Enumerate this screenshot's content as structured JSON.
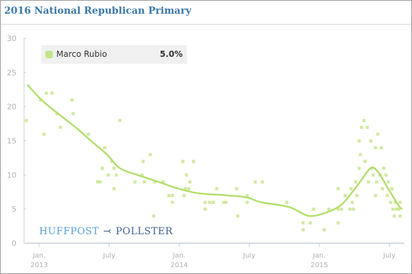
{
  "header": {
    "title": "2016 National Republican Primary"
  },
  "legend": {
    "name": "Marco Rubio",
    "value": "5.0%",
    "color": "#c4e38a"
  },
  "logo": {
    "left": "HUFFPOST",
    "right": "POLLSTER"
  },
  "chart_data": {
    "type": "scatter",
    "title": "2016 National Republican Primary",
    "x_unit": "months since Jan 2013",
    "ylim": [
      0,
      30
    ],
    "xlim": [
      -1.4,
      31.4
    ],
    "y_ticks": [
      "0",
      "5",
      "10",
      "15",
      "20",
      "25",
      "30"
    ],
    "x_ticks": [
      {
        "m": 0,
        "l1": "Jan.",
        "l2": "2013"
      },
      {
        "m": 6,
        "l1": "July",
        "l2": ""
      },
      {
        "m": 12,
        "l1": "Jan.",
        "l2": "2014"
      },
      {
        "m": 18,
        "l1": "July",
        "l2": ""
      },
      {
        "m": 24,
        "l1": "Jan.",
        "l2": "2015"
      },
      {
        "m": 30,
        "l1": "July",
        "l2": ""
      }
    ],
    "series": [
      {
        "name": "Marco Rubio",
        "color": "#c4e38a",
        "points": [
          [
            -1.1,
            18
          ],
          [
            0.1,
            21
          ],
          [
            0.4,
            16
          ],
          [
            0.6,
            22
          ],
          [
            1.1,
            22
          ],
          [
            1.5,
            19
          ],
          [
            1.8,
            17
          ],
          [
            2.8,
            21
          ],
          [
            2.9,
            19
          ],
          [
            4.2,
            16
          ],
          [
            5.0,
            9
          ],
          [
            5.2,
            9
          ],
          [
            5.4,
            11
          ],
          [
            5.6,
            14
          ],
          [
            5.9,
            10
          ],
          [
            6.2,
            12
          ],
          [
            6.4,
            11
          ],
          [
            6.4,
            8
          ],
          [
            6.6,
            10
          ],
          [
            6.9,
            18
          ],
          [
            8.2,
            9
          ],
          [
            8.8,
            10
          ],
          [
            8.9,
            12
          ],
          [
            9.0,
            9
          ],
          [
            9.5,
            13
          ],
          [
            9.8,
            4
          ],
          [
            9.9,
            9
          ],
          [
            10.6,
            9
          ],
          [
            11.1,
            7
          ],
          [
            11.4,
            7
          ],
          [
            11.4,
            6
          ],
          [
            12.3,
            12
          ],
          [
            12.4,
            7
          ],
          [
            12.6,
            10
          ],
          [
            12.5,
            8
          ],
          [
            12.8,
            8
          ],
          [
            12.9,
            9
          ],
          [
            13.2,
            12
          ],
          [
            14.2,
            5
          ],
          [
            14.2,
            6
          ],
          [
            14.6,
            6
          ],
          [
            14.9,
            6
          ],
          [
            15.2,
            8
          ],
          [
            15.8,
            6
          ],
          [
            16.0,
            6
          ],
          [
            16.9,
            8
          ],
          [
            17.0,
            4
          ],
          [
            17.8,
            7
          ],
          [
            17.8,
            6
          ],
          [
            18.5,
            9
          ],
          [
            19.1,
            9
          ],
          [
            21.2,
            6
          ],
          [
            22.6,
            3
          ],
          [
            22.6,
            2
          ],
          [
            23.2,
            3
          ],
          [
            23.5,
            5
          ],
          [
            24.4,
            2
          ],
          [
            24.8,
            5
          ],
          [
            25.6,
            8
          ],
          [
            25.6,
            3
          ],
          [
            25.6,
            5
          ],
          [
            25.9,
            5
          ],
          [
            26.2,
            7
          ],
          [
            26.6,
            5
          ],
          [
            26.7,
            8
          ],
          [
            26.8,
            6
          ],
          [
            26.9,
            5
          ],
          [
            27.1,
            9
          ],
          [
            27.2,
            7
          ],
          [
            27.4,
            11
          ],
          [
            27.4,
            15
          ],
          [
            27.5,
            13
          ],
          [
            27.6,
            17
          ],
          [
            27.8,
            18
          ],
          [
            27.9,
            12
          ],
          [
            28.1,
            17
          ],
          [
            28.2,
            9
          ],
          [
            28.4,
            15
          ],
          [
            28.5,
            11
          ],
          [
            28.6,
            10
          ],
          [
            28.8,
            14
          ],
          [
            28.8,
            7
          ],
          [
            28.9,
            9
          ],
          [
            29.0,
            16
          ],
          [
            29.2,
            10
          ],
          [
            29.3,
            14
          ],
          [
            29.4,
            8
          ],
          [
            29.5,
            11
          ],
          [
            29.7,
            10
          ],
          [
            29.8,
            7
          ],
          [
            29.9,
            9
          ],
          [
            30.1,
            6
          ],
          [
            30.2,
            8
          ],
          [
            30.3,
            5
          ],
          [
            30.4,
            4
          ],
          [
            30.5,
            6
          ],
          [
            30.6,
            5
          ],
          [
            30.8,
            5
          ],
          [
            30.9,
            4
          ],
          [
            30.9,
            6
          ]
        ],
        "trend": [
          [
            -1.0,
            23.2
          ],
          [
            0.2,
            21
          ],
          [
            1.6,
            19
          ],
          [
            3.1,
            17
          ],
          [
            4.3,
            15.2
          ],
          [
            5.8,
            13
          ],
          [
            6.9,
            11
          ],
          [
            8.4,
            10
          ],
          [
            10.2,
            9
          ],
          [
            11.9,
            8
          ],
          [
            13.7,
            7.3
          ],
          [
            16.1,
            7
          ],
          [
            17.8,
            6.7
          ],
          [
            19,
            6
          ],
          [
            21.4,
            5.3
          ],
          [
            23.1,
            4
          ],
          [
            24.6,
            4.5
          ],
          [
            25.8,
            5.5
          ],
          [
            26.6,
            7
          ],
          [
            27.5,
            9
          ],
          [
            28.4,
            11
          ],
          [
            29,
            10.5
          ],
          [
            29.9,
            8
          ],
          [
            30.8,
            5.5
          ],
          [
            31.1,
            5
          ]
        ]
      }
    ]
  }
}
